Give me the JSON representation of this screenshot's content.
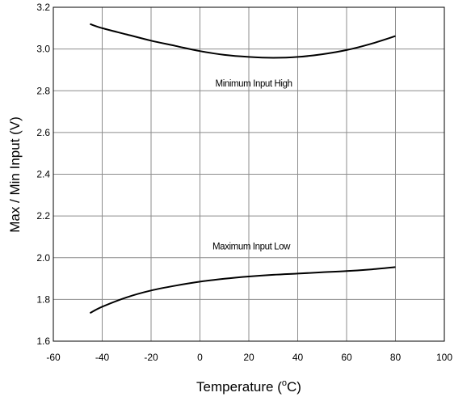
{
  "chart_data": {
    "type": "line",
    "xlabel": "Temperature (",
    "xlabel_super": "o",
    "xlabel_end": "C)",
    "ylabel": "Max / Min Input (V)",
    "xlim": [
      -60,
      100
    ],
    "ylim": [
      1.6,
      3.2
    ],
    "x_ticks": [
      -60,
      -40,
      -20,
      0,
      20,
      40,
      60,
      80,
      100
    ],
    "y_ticks": [
      1.6,
      1.8,
      2.0,
      2.2,
      2.4,
      2.6,
      2.8,
      3.0,
      3.2
    ],
    "x_tick_labels": [
      "-60",
      "-40",
      "-20",
      "0",
      "20",
      "40",
      "60",
      "80",
      "100"
    ],
    "y_tick_labels": [
      "1.6",
      "1.8",
      "2.0",
      "2.2",
      "2.4",
      "2.6",
      "2.8",
      "3.0",
      "3.2"
    ],
    "grid": true,
    "series": [
      {
        "annotation": "Minimum Input High",
        "annotation_at": [
          22,
          2.82
        ],
        "x": [
          -45,
          -40,
          -30,
          -20,
          -10,
          0,
          10,
          20,
          30,
          40,
          50,
          60,
          70,
          80
        ],
        "y": [
          3.12,
          3.1,
          3.07,
          3.04,
          3.015,
          2.99,
          2.972,
          2.962,
          2.958,
          2.962,
          2.975,
          2.995,
          3.025,
          3.062
        ]
      },
      {
        "annotation": "Maximum Input Low",
        "annotation_at": [
          21,
          2.04
        ],
        "x": [
          -45,
          -40,
          -30,
          -20,
          -10,
          0,
          10,
          20,
          30,
          40,
          50,
          60,
          70,
          80
        ],
        "y": [
          1.735,
          1.765,
          1.81,
          1.843,
          1.866,
          1.885,
          1.899,
          1.91,
          1.918,
          1.924,
          1.93,
          1.936,
          1.944,
          1.955
        ]
      }
    ]
  }
}
